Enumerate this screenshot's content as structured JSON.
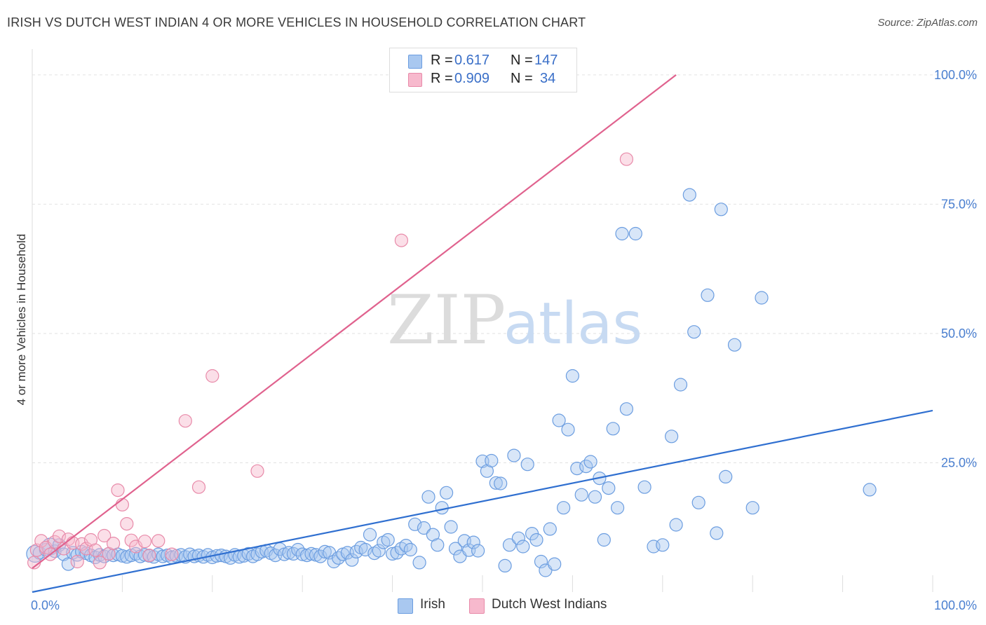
{
  "title": "IRISH VS DUTCH WEST INDIAN 4 OR MORE VEHICLES IN HOUSEHOLD CORRELATION CHART",
  "source": "Source: ZipAtlas.com",
  "watermark": {
    "zip": "ZIP",
    "atlas": "atlas"
  },
  "legend": {
    "r_label": "R =",
    "n_label": "N =",
    "rows": [
      {
        "r": "0.617",
        "n": "147",
        "fill": "#a9c8f0",
        "stroke": "#6b9de0"
      },
      {
        "r": "0.909",
        "n": "34",
        "fill": "#f7b9cd",
        "stroke": "#e88aa9"
      }
    ]
  },
  "chart_data": {
    "type": "scatter",
    "title": "IRISH VS DUTCH WEST INDIAN 4 OR MORE VEHICLES IN HOUSEHOLD CORRELATION CHART",
    "xlabel": "",
    "ylabel": "4 or more Vehicles in Household",
    "xlim": [
      0,
      100
    ],
    "ylim": [
      0,
      105
    ],
    "x_tick_labels": [
      "0.0%",
      "100.0%"
    ],
    "y_ticks": [
      25,
      50,
      75,
      100
    ],
    "y_tick_labels": [
      "25.0%",
      "50.0%",
      "75.0%",
      "100.0%"
    ],
    "grid": true,
    "legend_position": "top-center",
    "series": [
      {
        "name": "Irish",
        "color": "#6b9de0",
        "fill": "#a9c8f0",
        "trendline": {
          "x": [
            0,
            100
          ],
          "y": [
            0,
            35.1
          ]
        },
        "points": [
          [
            0.3,
            7.4
          ],
          [
            0.8,
            7.6
          ],
          [
            1.5,
            8.2
          ],
          [
            2,
            8.8
          ],
          [
            2.5,
            7.9
          ],
          [
            3,
            9.1
          ],
          [
            3.5,
            7.3
          ],
          [
            4,
            5.4
          ],
          [
            4.5,
            7.6
          ],
          [
            5,
            7.2
          ],
          [
            5.5,
            7.8
          ],
          [
            6,
            7.5
          ],
          [
            6.5,
            7.1
          ],
          [
            7,
            6.7
          ],
          [
            7.5,
            7.2
          ],
          [
            8,
            6.9
          ],
          [
            8.5,
            7.4
          ],
          [
            9,
            7.1
          ],
          [
            9.5,
            7.3
          ],
          [
            10,
            7
          ],
          [
            10.5,
            6.8
          ],
          [
            11,
            7.1
          ],
          [
            11.5,
            7.4
          ],
          [
            12,
            6.9
          ],
          [
            12.5,
            7.2
          ],
          [
            13,
            7
          ],
          [
            13.5,
            6.8
          ],
          [
            14,
            7.3
          ],
          [
            14.5,
            6.9
          ],
          [
            15,
            7.1
          ],
          [
            15.5,
            6.7
          ],
          [
            16,
            7
          ],
          [
            16.5,
            7.2
          ],
          [
            17,
            6.8
          ],
          [
            17.5,
            7.3
          ],
          [
            18,
            6.9
          ],
          [
            18.5,
            7.1
          ],
          [
            19,
            6.8
          ],
          [
            19.5,
            7.2
          ],
          [
            20,
            6.7
          ],
          [
            20.5,
            7
          ],
          [
            21,
            7.1
          ],
          [
            21.5,
            6.9
          ],
          [
            22,
            6.6
          ],
          [
            22.5,
            7.2
          ],
          [
            23,
            6.8
          ],
          [
            23.5,
            7
          ],
          [
            24,
            7.4
          ],
          [
            24.5,
            6.9
          ],
          [
            25,
            7.3
          ],
          [
            25.5,
            7.8
          ],
          [
            26,
            8
          ],
          [
            26.5,
            7.5
          ],
          [
            27,
            7.1
          ],
          [
            27.5,
            8.3
          ],
          [
            28,
            7.3
          ],
          [
            28.5,
            7.6
          ],
          [
            29,
            7.4
          ],
          [
            29.5,
            8.2
          ],
          [
            30,
            7.3
          ],
          [
            30.5,
            7.1
          ],
          [
            31,
            7.4
          ],
          [
            31.5,
            7.2
          ],
          [
            32,
            6.9
          ],
          [
            32.5,
            7.8
          ],
          [
            33,
            7.6
          ],
          [
            33.5,
            5.9
          ],
          [
            34,
            6.6
          ],
          [
            34.5,
            7.3
          ],
          [
            35,
            7.6
          ],
          [
            35.5,
            6.2
          ],
          [
            36,
            7.8
          ],
          [
            36.5,
            8.6
          ],
          [
            37,
            8.2
          ],
          [
            37.5,
            11.1
          ],
          [
            38,
            7.5
          ],
          [
            38.5,
            8
          ],
          [
            39,
            9.6
          ],
          [
            39.5,
            10.1
          ],
          [
            40,
            7.4
          ],
          [
            40.5,
            7.6
          ],
          [
            41,
            8.4
          ],
          [
            41.5,
            9
          ],
          [
            42,
            8.2
          ],
          [
            42.5,
            13.1
          ],
          [
            43,
            5.7
          ],
          [
            43.5,
            12.4
          ],
          [
            44,
            18.4
          ],
          [
            44.5,
            11.1
          ],
          [
            45,
            9.1
          ],
          [
            45.5,
            16.3
          ],
          [
            46,
            19.2
          ],
          [
            46.5,
            12.6
          ],
          [
            47,
            8.4
          ],
          [
            47.5,
            6.9
          ],
          [
            48,
            9.9
          ],
          [
            48.5,
            8.1
          ],
          [
            49,
            9.6
          ],
          [
            49.5,
            8
          ],
          [
            50,
            25.3
          ],
          [
            50.5,
            23.4
          ],
          [
            51,
            25.4
          ],
          [
            51.5,
            21.1
          ],
          [
            52,
            21
          ],
          [
            52.5,
            5.1
          ],
          [
            53,
            9.1
          ],
          [
            53.5,
            26.4
          ],
          [
            54,
            10.4
          ],
          [
            54.5,
            8.8
          ],
          [
            55,
            24.7
          ],
          [
            55.5,
            11.3
          ],
          [
            56,
            10.1
          ],
          [
            56.5,
            5.9
          ],
          [
            57,
            4.2
          ],
          [
            57.5,
            12.2
          ],
          [
            58,
            5.4
          ],
          [
            58.5,
            33.2
          ],
          [
            59,
            16.3
          ],
          [
            59.5,
            31.4
          ],
          [
            60,
            41.8
          ],
          [
            60.5,
            23.9
          ],
          [
            61,
            18.8
          ],
          [
            61.5,
            24.3
          ],
          [
            62,
            25.2
          ],
          [
            62.5,
            18.4
          ],
          [
            63,
            22
          ],
          [
            63.5,
            10.1
          ],
          [
            64,
            20.1
          ],
          [
            64.5,
            31.6
          ],
          [
            65,
            16.3
          ],
          [
            65.5,
            69.3
          ],
          [
            66,
            35.4
          ],
          [
            67,
            69.3
          ],
          [
            68,
            20.3
          ],
          [
            69,
            8.8
          ],
          [
            70,
            9.1
          ],
          [
            71,
            30.1
          ],
          [
            71.5,
            13
          ],
          [
            72,
            40.1
          ],
          [
            73,
            76.8
          ],
          [
            73.5,
            50.3
          ],
          [
            74,
            17.3
          ],
          [
            75,
            57.4
          ],
          [
            76,
            11.4
          ],
          [
            76.5,
            74
          ],
          [
            77,
            22.3
          ],
          [
            78,
            47.8
          ],
          [
            80,
            16.3
          ],
          [
            81,
            56.9
          ],
          [
            93,
            19.8
          ]
        ]
      },
      {
        "name": "Dutch West Indians",
        "color": "#e88aa9",
        "fill": "#f7b9cd",
        "trendline": {
          "x": [
            0,
            71.5
          ],
          "y": [
            4.6,
            100
          ]
        },
        "points": [
          [
            0.2,
            5.7
          ],
          [
            0.5,
            8.1
          ],
          [
            1,
            9.9
          ],
          [
            1.5,
            8.6
          ],
          [
            2,
            7.3
          ],
          [
            2.5,
            9.7
          ],
          [
            3,
            10.8
          ],
          [
            3.5,
            8.4
          ],
          [
            4,
            10.2
          ],
          [
            4.5,
            9.5
          ],
          [
            5,
            5.9
          ],
          [
            5.5,
            9.3
          ],
          [
            6,
            8.4
          ],
          [
            6.5,
            10.1
          ],
          [
            7,
            8.1
          ],
          [
            7.5,
            5.7
          ],
          [
            8,
            10.9
          ],
          [
            8.5,
            7.4
          ],
          [
            9,
            9.4
          ],
          [
            9.5,
            19.7
          ],
          [
            10,
            16.9
          ],
          [
            10.5,
            13.2
          ],
          [
            11,
            10
          ],
          [
            11.5,
            8.8
          ],
          [
            12.5,
            9.8
          ],
          [
            13,
            7.1
          ],
          [
            14,
            9.9
          ],
          [
            15.5,
            7.3
          ],
          [
            17,
            33.1
          ],
          [
            18.5,
            20.3
          ],
          [
            20,
            41.8
          ],
          [
            25,
            23.4
          ],
          [
            41,
            68
          ],
          [
            66,
            83.7
          ]
        ]
      }
    ]
  },
  "bottom_legend": [
    "Irish",
    "Dutch West Indians"
  ]
}
